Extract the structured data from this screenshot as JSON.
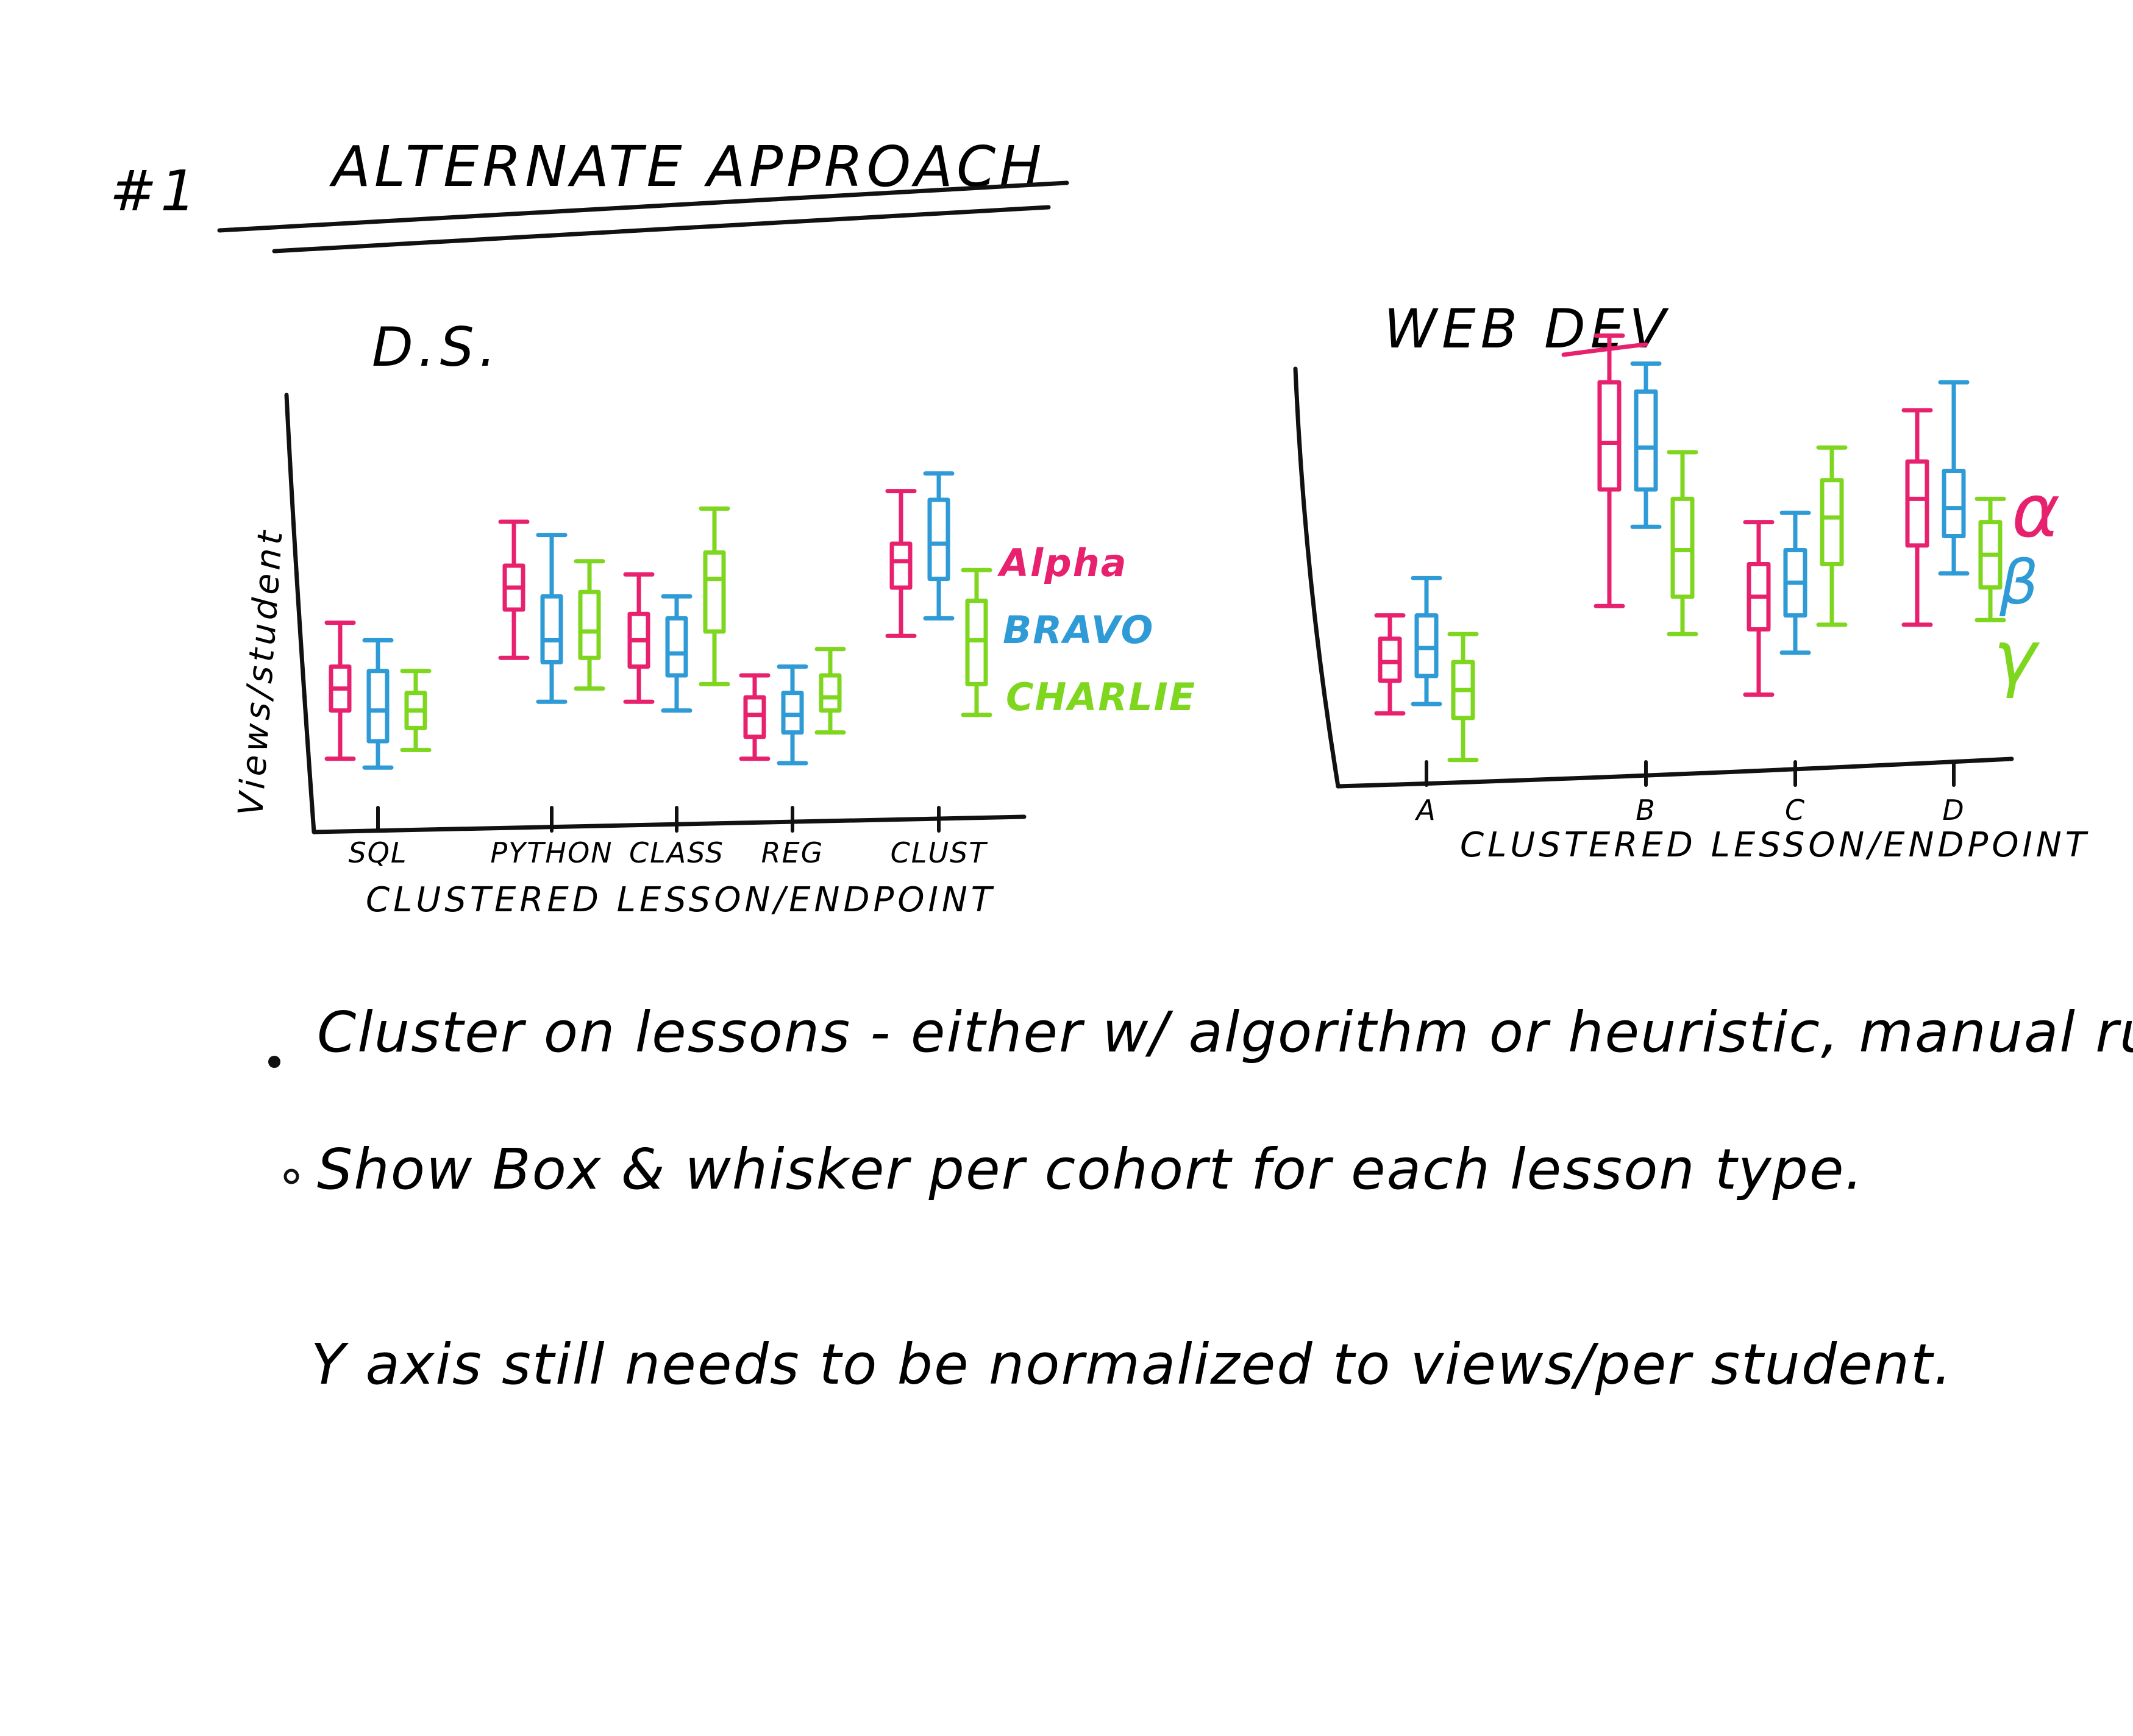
{
  "page": {
    "number_mark": "#1",
    "title": "ALTERNATE APPROACH"
  },
  "colors": {
    "ink": "#111111",
    "alpha": "#e8216f",
    "bravo": "#2e9ad6",
    "charlie": "#7fd61f"
  },
  "ds_chart": {
    "title": "D.S.",
    "ylabel": "Views/student",
    "xlabel": "CLUSTERED LESSON/ENDPOINT",
    "categories": [
      "SQL",
      "PYTHON",
      "CLASS",
      "REG",
      "CLUST"
    ],
    "legend": [
      "Alpha",
      "BRAVO",
      "CHARLIE"
    ]
  },
  "web_chart": {
    "title": "WEB DEV",
    "xlabel": "CLUSTERED LESSON/ENDPOINT",
    "categories": [
      "A",
      "B",
      "C",
      "D"
    ],
    "side_labels": [
      "α",
      "β",
      "γ"
    ]
  },
  "notes": [
    "Cluster on lessons - either w/ algorithm or heuristic, manual rules.",
    "Show Box & whisker per cohort for each lesson type.",
    "Y axis still needs to be normalized to views/per student."
  ],
  "chart_data": [
    {
      "type": "box",
      "title": "D.S.",
      "xlabel": "CLUSTERED LESSON/ENDPOINT",
      "ylabel": "Views/student",
      "categories": [
        "SQL",
        "PYTHON",
        "CLASS",
        "REG",
        "CLUST"
      ],
      "ylim": [
        0,
        10
      ],
      "series": [
        {
          "name": "Alpha",
          "color": "#e8216f",
          "boxes": [
            {
              "min": 1.6,
              "q1": 2.7,
              "median": 3.2,
              "q3": 3.7,
              "max": 4.7
            },
            {
              "min": 3.9,
              "q1": 5.0,
              "median": 5.5,
              "q3": 6.0,
              "max": 7.0
            },
            {
              "min": 2.9,
              "q1": 3.7,
              "median": 4.3,
              "q3": 4.9,
              "max": 5.8
            },
            {
              "min": 1.6,
              "q1": 2.1,
              "median": 2.6,
              "q3": 3.0,
              "max": 3.5
            },
            {
              "min": 4.4,
              "q1": 5.5,
              "median": 6.1,
              "q3": 6.5,
              "max": 7.7
            }
          ]
        },
        {
          "name": "BRAVO",
          "color": "#2e9ad6",
          "boxes": [
            {
              "min": 1.4,
              "q1": 2.0,
              "median": 2.7,
              "q3": 3.6,
              "max": 4.3
            },
            {
              "min": 2.9,
              "q1": 3.8,
              "median": 4.3,
              "q3": 5.3,
              "max": 6.7
            },
            {
              "min": 2.7,
              "q1": 3.5,
              "median": 4.0,
              "q3": 4.8,
              "max": 5.3
            },
            {
              "min": 1.5,
              "q1": 2.2,
              "median": 2.6,
              "q3": 3.1,
              "max": 3.7
            },
            {
              "min": 4.8,
              "q1": 5.7,
              "median": 6.5,
              "q3": 7.5,
              "max": 8.1
            }
          ]
        },
        {
          "name": "CHARLIE",
          "color": "#7fd61f",
          "boxes": [
            {
              "min": 1.8,
              "q1": 2.3,
              "median": 2.7,
              "q3": 3.1,
              "max": 3.6
            },
            {
              "min": 3.2,
              "q1": 3.9,
              "median": 4.5,
              "q3": 5.4,
              "max": 6.1
            },
            {
              "min": 3.3,
              "q1": 4.5,
              "median": 5.7,
              "q3": 6.3,
              "max": 7.3
            },
            {
              "min": 2.2,
              "q1": 2.7,
              "median": 3.0,
              "q3": 3.5,
              "max": 4.1
            },
            {
              "min": 2.6,
              "q1": 3.3,
              "median": 4.3,
              "q3": 5.2,
              "max": 5.9
            }
          ]
        }
      ]
    },
    {
      "type": "box",
      "title": "WEB DEV",
      "xlabel": "CLUSTERED LESSON/ENDPOINT",
      "ylabel": "",
      "categories": [
        "A",
        "B",
        "C",
        "D"
      ],
      "ylim": [
        0,
        10
      ],
      "series": [
        {
          "name": "α",
          "color": "#e8216f",
          "boxes": [
            {
              "min": 1.5,
              "q1": 2.2,
              "median": 2.6,
              "q3": 3.1,
              "max": 3.6
            },
            {
              "min": 3.8,
              "q1": 6.3,
              "median": 7.3,
              "q3": 8.6,
              "max": 9.6
            },
            {
              "min": 1.9,
              "q1": 3.3,
              "median": 4.0,
              "q3": 4.7,
              "max": 5.6
            },
            {
              "min": 3.4,
              "q1": 5.1,
              "median": 6.1,
              "q3": 6.9,
              "max": 8.0
            }
          ]
        },
        {
          "name": "β",
          "color": "#2e9ad6",
          "boxes": [
            {
              "min": 1.7,
              "q1": 2.3,
              "median": 2.9,
              "q3": 3.6,
              "max": 4.4
            },
            {
              "min": 5.5,
              "q1": 6.3,
              "median": 7.2,
              "q3": 8.4,
              "max": 9.0
            },
            {
              "min": 2.8,
              "q1": 3.6,
              "median": 4.3,
              "q3": 5.0,
              "max": 5.8
            },
            {
              "min": 4.5,
              "q1": 5.3,
              "median": 5.9,
              "q3": 6.7,
              "max": 8.6
            }
          ]
        },
        {
          "name": "γ",
          "color": "#7fd61f",
          "boxes": [
            {
              "min": 0.5,
              "q1": 1.4,
              "median": 2.0,
              "q3": 2.6,
              "max": 3.2
            },
            {
              "min": 3.2,
              "q1": 4.0,
              "median": 5.0,
              "q3": 6.1,
              "max": 7.1
            },
            {
              "min": 3.4,
              "q1": 4.7,
              "median": 5.7,
              "q3": 6.5,
              "max": 7.2
            },
            {
              "min": 3.5,
              "q1": 4.2,
              "median": 4.9,
              "q3": 5.6,
              "max": 6.1
            }
          ]
        }
      ]
    }
  ]
}
